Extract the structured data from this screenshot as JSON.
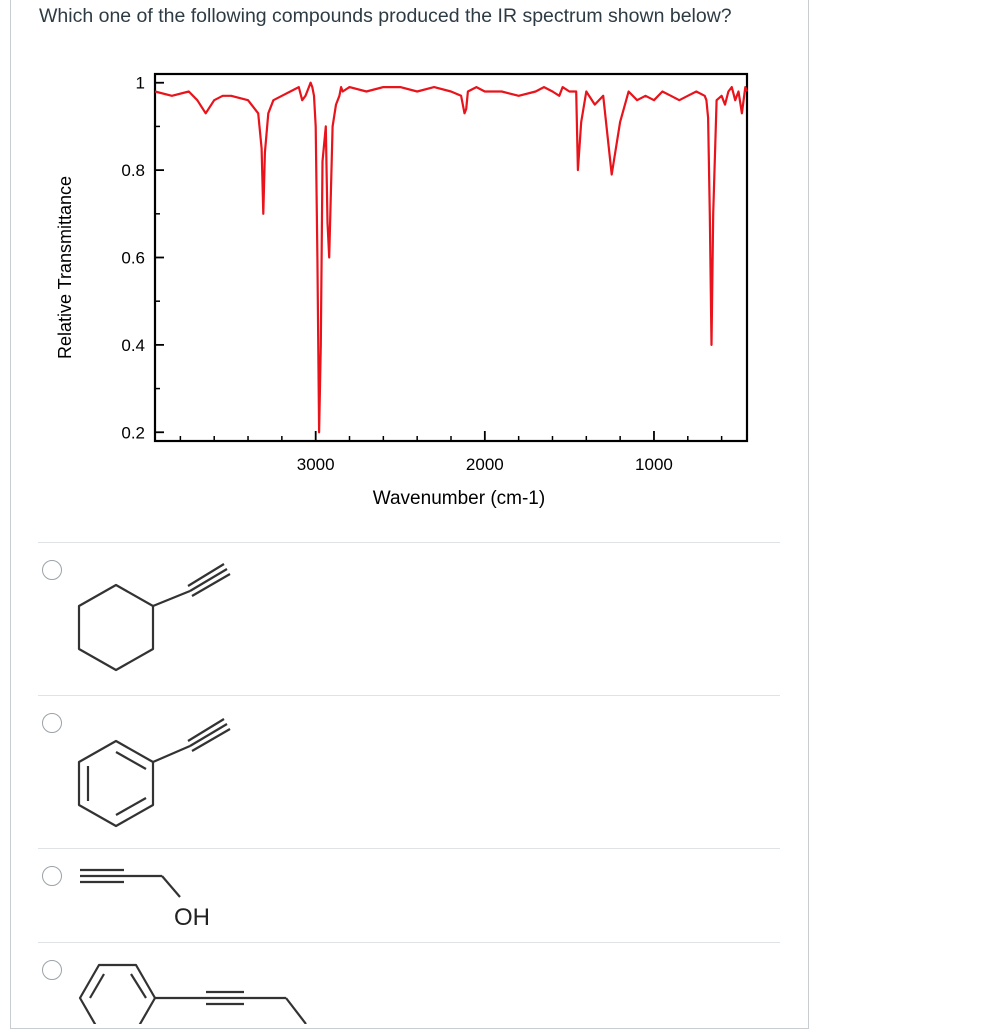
{
  "question": {
    "text": "Which one of the following compounds produced the IR spectrum shown below?"
  },
  "chart_data": {
    "type": "line",
    "title": "",
    "xlabel": "Wavenumber (cm-1)",
    "ylabel": "Relative Transmittance",
    "xlim": [
      3950,
      450
    ],
    "ylim": [
      0.18,
      1.02
    ],
    "x_ticks": [
      3000,
      2000,
      1000
    ],
    "y_ticks": [
      1,
      0.8,
      0.6,
      0.4,
      0.2
    ],
    "x_tick_labels": [
      "3000",
      "2000",
      "1000"
    ],
    "y_tick_labels": [
      "1",
      "0.8",
      "0.6",
      "0.4",
      "0.2"
    ],
    "grid": false,
    "line_color": "#e8131b",
    "series": [
      {
        "x": [
          3950,
          3850,
          3750,
          3700,
          3650,
          3600,
          3550,
          3500,
          3400,
          3340,
          3320,
          3310,
          3300,
          3280,
          3250,
          3200,
          3150,
          3100,
          3080,
          3060,
          3040,
          3030,
          3020,
          3010,
          3000,
          2990,
          2980,
          2970,
          2960,
          2940,
          2930,
          2920,
          2900,
          2880,
          2860,
          2850,
          2840,
          2800,
          2700,
          2600,
          2500,
          2400,
          2300,
          2200,
          2140,
          2120,
          2110,
          2100,
          2050,
          2000,
          1900,
          1800,
          1700,
          1650,
          1600,
          1560,
          1540,
          1500,
          1460,
          1450,
          1430,
          1400,
          1350,
          1300,
          1250,
          1200,
          1150,
          1100,
          1050,
          1000,
          950,
          900,
          850,
          800,
          750,
          700,
          690,
          680,
          670,
          660,
          650,
          630,
          600,
          580,
          560,
          540,
          520,
          500,
          480,
          460,
          450
        ],
        "y": [
          0.98,
          0.97,
          0.98,
          0.96,
          0.93,
          0.96,
          0.97,
          0.97,
          0.96,
          0.93,
          0.85,
          0.7,
          0.84,
          0.93,
          0.96,
          0.97,
          0.98,
          0.99,
          0.96,
          0.97,
          0.99,
          1.0,
          0.99,
          0.97,
          0.9,
          0.6,
          0.2,
          0.4,
          0.82,
          0.9,
          0.68,
          0.6,
          0.9,
          0.95,
          0.97,
          0.99,
          0.98,
          0.99,
          0.98,
          0.99,
          0.99,
          0.98,
          0.99,
          0.98,
          0.97,
          0.93,
          0.94,
          0.98,
          0.99,
          0.98,
          0.98,
          0.97,
          0.98,
          0.99,
          0.98,
          0.97,
          0.99,
          0.98,
          0.98,
          0.8,
          0.91,
          0.98,
          0.95,
          0.97,
          0.79,
          0.91,
          0.98,
          0.96,
          0.97,
          0.96,
          0.98,
          0.97,
          0.96,
          0.97,
          0.98,
          0.97,
          0.96,
          0.92,
          0.7,
          0.4,
          0.7,
          0.96,
          0.97,
          0.95,
          0.98,
          0.99,
          0.96,
          0.98,
          0.93,
          0.99,
          0.98
        ]
      }
    ]
  },
  "answers": {
    "option_labels": {
      "oh": "OH"
    }
  },
  "colors": {
    "text": "#2d3b45",
    "border": "#c7cdd1",
    "divider": "#dfe3e6",
    "radio": "#9aa3a9",
    "structure": "#333333"
  }
}
